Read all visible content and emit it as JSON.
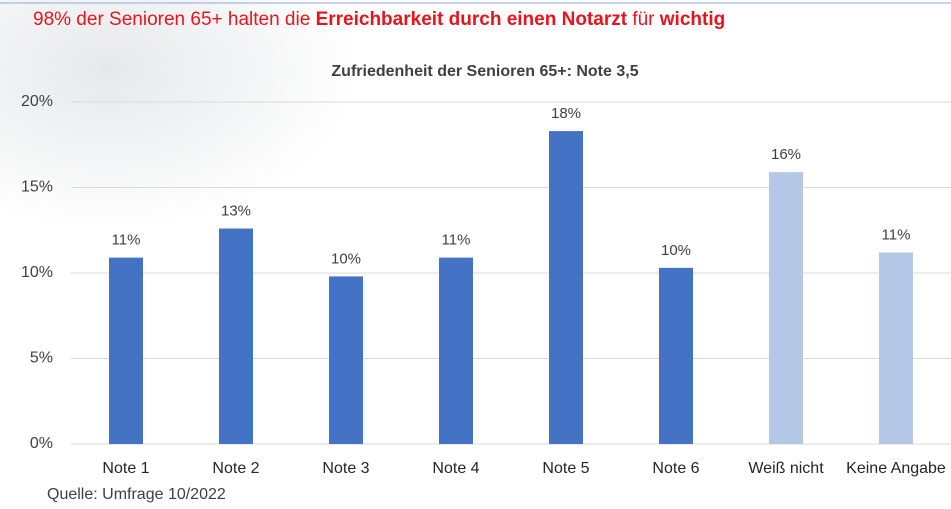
{
  "chart_data": {
    "type": "bar",
    "title_parts": [
      {
        "text": "98% der Senioren 65+ halten die ",
        "bold": false
      },
      {
        "text": "Erreichbarkeit durch einen Notarzt",
        "bold": true
      },
      {
        "text": " für ",
        "bold": false
      },
      {
        "text": "wichtig",
        "bold": true
      }
    ],
    "title_color": "#e8141c",
    "subtitle": "Zufriedenheit der Senioren 65+: Note 3,5",
    "categories": [
      "Note 1",
      "Note 2",
      "Note 3",
      "Note 4",
      "Note 5",
      "Note 6",
      "Weiß nicht",
      "Keine Angabe"
    ],
    "values": [
      10.9,
      12.6,
      9.8,
      10.9,
      18.3,
      10.3,
      15.9,
      11.2
    ],
    "value_labels": [
      "11%",
      "13%",
      "10%",
      "11%",
      "18%",
      "10%",
      "16%",
      "11%"
    ],
    "colors": [
      "#4472c4",
      "#4472c4",
      "#4472c4",
      "#4472c4",
      "#4472c4",
      "#4472c4",
      "#b4c7e7",
      "#b4c7e7"
    ],
    "ylim": [
      0,
      20
    ],
    "yticks": [
      {
        "value": 0,
        "label": "0%"
      },
      {
        "value": 5,
        "label": "5%"
      },
      {
        "value": 10,
        "label": "10%"
      },
      {
        "value": 15,
        "label": "15%"
      },
      {
        "value": 20,
        "label": "20%"
      }
    ],
    "grid": true,
    "source": "Quelle: Umfrage 10/2022"
  }
}
